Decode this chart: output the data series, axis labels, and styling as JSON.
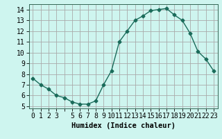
{
  "x": [
    0,
    1,
    2,
    3,
    4,
    5,
    6,
    7,
    8,
    9,
    10,
    11,
    12,
    13,
    14,
    15,
    16,
    17,
    18,
    19,
    20,
    21,
    22,
    23
  ],
  "y": [
    7.6,
    7.0,
    6.6,
    6.0,
    5.8,
    5.4,
    5.2,
    5.2,
    5.5,
    7.0,
    8.3,
    11.0,
    12.0,
    13.0,
    13.4,
    13.9,
    14.0,
    14.1,
    13.5,
    13.0,
    11.8,
    10.1,
    9.4,
    8.3
  ],
  "line_color": "#1a6b5a",
  "marker": "D",
  "markersize": 2.5,
  "linewidth": 1.0,
  "bg_color": "#cef5ef",
  "plot_bg_color": "#cef5ef",
  "major_grid_color": "#aaaaaa",
  "minor_grid_color": "#f0c0c0",
  "xlabel": "Humidex (Indice chaleur)",
  "xlim": [
    -0.5,
    23.5
  ],
  "ylim": [
    4.8,
    14.5
  ],
  "yticks": [
    5,
    6,
    7,
    8,
    9,
    10,
    11,
    12,
    13,
    14
  ],
  "xtick_labels": [
    "0",
    "1",
    "2",
    "3",
    "",
    "5",
    "6",
    "7",
    "8",
    "9",
    "10",
    "11",
    "12",
    "13",
    "14",
    "15",
    "16",
    "17",
    "18",
    "19",
    "20",
    "21",
    "22",
    "23"
  ],
  "xtick_positions": [
    0,
    1,
    2,
    3,
    4,
    5,
    6,
    7,
    8,
    9,
    10,
    11,
    12,
    13,
    14,
    15,
    16,
    17,
    18,
    19,
    20,
    21,
    22,
    23
  ],
  "label_fontsize": 7.5,
  "tick_fontsize": 7.0
}
